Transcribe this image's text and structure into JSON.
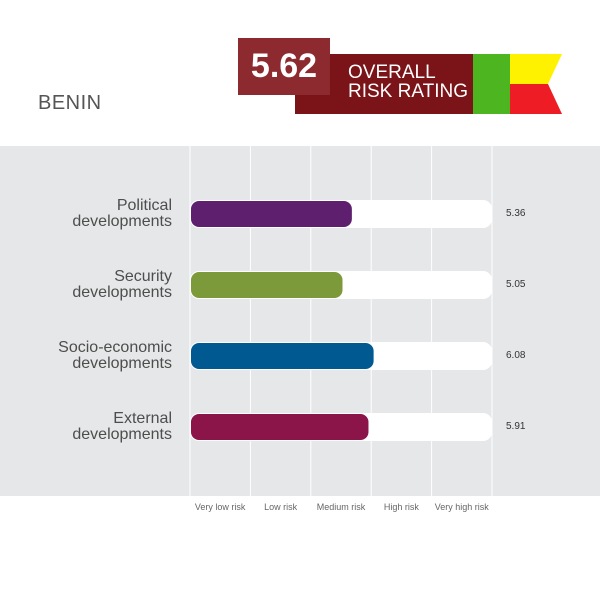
{
  "country": "BENIN",
  "overall": {
    "score": "5.62",
    "label_line1": "OVERALL",
    "label_line2": "RISK RATING",
    "flag_colors": {
      "green": "#4cb520",
      "yellow": "#fff200",
      "red": "#ee1c25"
    },
    "score_box_color": "#8c2a2f",
    "ribbon_color": "#7b1418"
  },
  "chart_data": {
    "type": "bar",
    "orientation": "horizontal",
    "categories": [
      [
        "Political",
        "developments"
      ],
      [
        "Security",
        "developments"
      ],
      [
        "Socio-economic",
        "developments"
      ],
      [
        "External",
        "developments"
      ]
    ],
    "values": [
      5.36,
      5.05,
      6.08,
      5.91
    ],
    "value_labels": [
      "5.36",
      "5.05",
      "6.08",
      "5.91"
    ],
    "colors": [
      "#5e1f6e",
      "#7d9a3b",
      "#005a91",
      "#8b1448"
    ],
    "xlim": [
      0,
      10
    ],
    "ticks": [
      "Very low risk",
      "Low risk",
      "Medium risk",
      "High risk",
      "Very high risk"
    ],
    "grid": true
  }
}
